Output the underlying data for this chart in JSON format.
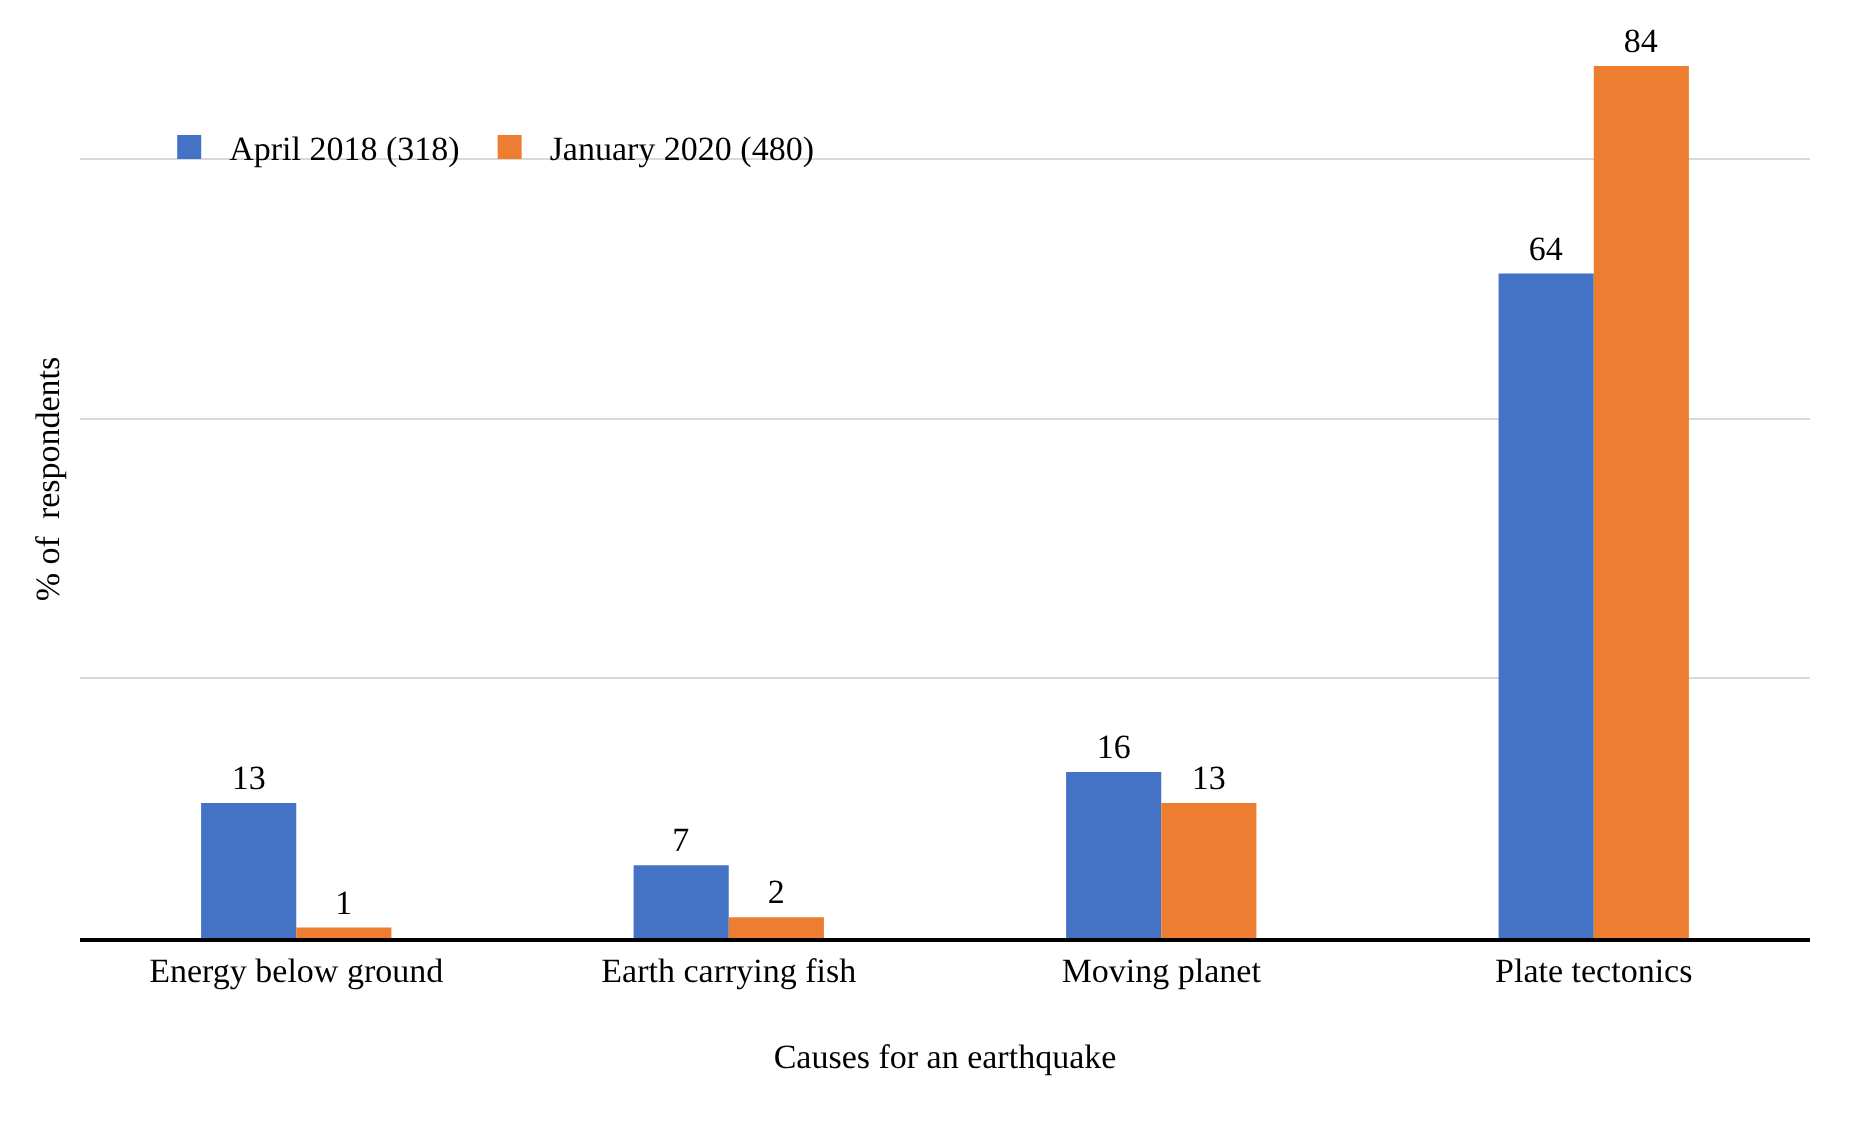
{
  "chart_data": {
    "type": "bar",
    "xlabel": "Causes for an earthquake",
    "ylabel": "% of  respondents",
    "categories": [
      "Energy below ground",
      "Earth carrying fish",
      "Moving planet",
      "Plate tectonics"
    ],
    "series": [
      {
        "name": "April 2018 (318)",
        "color": "#4472c4",
        "values": [
          13,
          7,
          16,
          64
        ]
      },
      {
        "name": "January 2020 (480)",
        "color": "#ed7d31",
        "values": [
          1,
          2,
          13,
          84
        ]
      }
    ],
    "yticks": [
      {
        "value": 0,
        "label": null
      },
      {
        "value": 25,
        "label": null
      },
      {
        "value": 50,
        "label": null
      },
      {
        "value": 75,
        "label": null
      }
    ],
    "grid": "y",
    "legend": "top left",
    "data_labels": true
  }
}
